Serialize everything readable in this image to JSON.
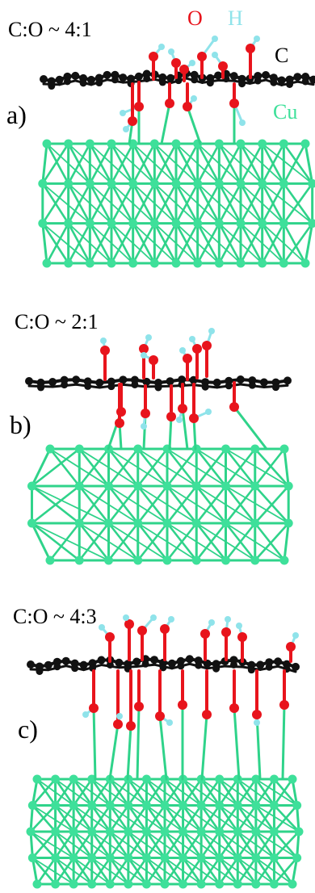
{
  "colors": {
    "oxygen": "#e8141c",
    "hydrogen": "#8fe3ea",
    "carbon": "#111111",
    "copper": "#3ee09a",
    "copper_bond": "#2fd38a"
  },
  "legend": {
    "o": "O",
    "h": "H",
    "c": "C",
    "cu": "Cu"
  },
  "panels": [
    {
      "label": "a)",
      "ratio": "C:O ~ 4:1"
    },
    {
      "label": "b)",
      "ratio": "C:O ~ 2:1"
    },
    {
      "label": "c)",
      "ratio": "C:O ~ 4:3"
    }
  ]
}
